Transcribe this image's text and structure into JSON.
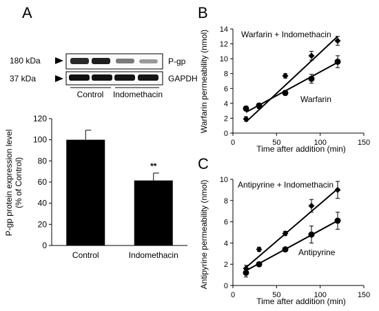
{
  "panels": {
    "A": "A",
    "B": "B",
    "C": "C"
  },
  "blot": {
    "markers": [
      {
        "label": "180  kDa",
        "protein": "P-gp"
      },
      {
        "label": "37 kDa",
        "protein": "GAPDH"
      }
    ],
    "groups": [
      "Control",
      "Indomethacin"
    ]
  },
  "chart_data": [
    {
      "id": "A",
      "type": "bar",
      "categories": [
        "Control",
        "Indomethacin"
      ],
      "values": [
        100,
        61.5
      ],
      "errors": [
        9,
        7
      ],
      "annotations": [
        "",
        "**"
      ],
      "ylabel_line1": "P-gp protein expression level",
      "ylabel_line2": "(% of Control)",
      "ylim": [
        0,
        120
      ],
      "yticks": [
        0,
        20,
        40,
        60,
        80,
        100,
        120
      ],
      "bar_color": "#000000"
    },
    {
      "id": "B",
      "type": "scatter",
      "xlabel": "Time after addition (min)",
      "ylabel": "Warfarin permeability (nmol)",
      "xlim": [
        0,
        150
      ],
      "ylim": [
        0,
        14
      ],
      "xticks": [
        0,
        50,
        100,
        150
      ],
      "yticks": [
        0,
        2,
        4,
        6,
        8,
        10,
        12,
        14
      ],
      "series": [
        {
          "name": "Warfarin + Indomethacin",
          "marker": "diamond",
          "x": [
            15,
            30,
            60,
            90,
            120
          ],
          "y": [
            1.9,
            3.6,
            7.7,
            10.4,
            12.4
          ],
          "err": [
            0.3,
            0.3,
            0.3,
            0.6,
            0.6
          ],
          "fit": [
            [
              15,
              1.5
            ],
            [
              120,
              13.0
            ]
          ]
        },
        {
          "name": "Warfarin",
          "marker": "circle",
          "x": [
            15,
            30,
            60,
            90,
            120
          ],
          "y": [
            3.3,
            3.7,
            5.4,
            7.3,
            9.6
          ],
          "err": [
            0.3,
            0.3,
            0.3,
            0.6,
            0.8
          ],
          "fit": [
            [
              15,
              2.8
            ],
            [
              120,
              9.5
            ]
          ]
        }
      ]
    },
    {
      "id": "C",
      "type": "scatter",
      "xlabel": "Time after addition (min)",
      "ylabel": "Antipyrine permeability (nmol)",
      "xlim": [
        0,
        150
      ],
      "ylim": [
        0,
        10
      ],
      "xticks": [
        0,
        50,
        100,
        150
      ],
      "yticks": [
        0,
        2,
        4,
        6,
        8,
        10
      ],
      "series": [
        {
          "name": "Antipyrine + Indomethacin",
          "marker": "diamond",
          "x": [
            15,
            30,
            60,
            90,
            120
          ],
          "y": [
            1.6,
            3.4,
            4.9,
            7.5,
            9.0
          ],
          "err": [
            0.3,
            0.2,
            0.2,
            0.6,
            0.8
          ],
          "fit": [
            [
              15,
              1.7
            ],
            [
              120,
              9.1
            ]
          ]
        },
        {
          "name": "Antipyrine",
          "marker": "circle",
          "x": [
            15,
            30,
            60,
            90,
            120
          ],
          "y": [
            1.2,
            2.0,
            3.4,
            4.8,
            6.1
          ],
          "err": [
            0.4,
            0.2,
            0.2,
            0.8,
            0.8
          ],
          "fit": [
            [
              15,
              1.4
            ],
            [
              120,
              6.1
            ]
          ]
        }
      ]
    }
  ]
}
